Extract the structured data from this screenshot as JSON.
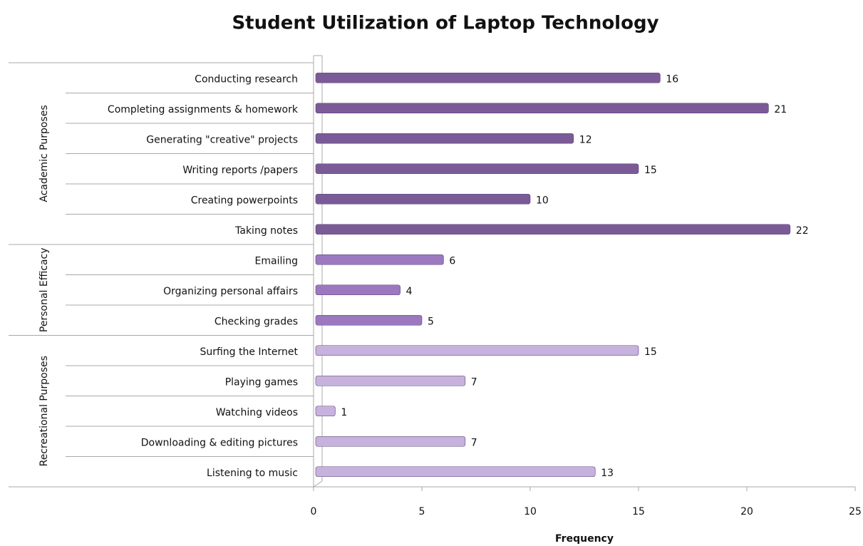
{
  "chart_data": {
    "type": "bar",
    "title": "Student Utilization of Laptop Technology",
    "x_label": "Frequency",
    "xlim": [
      0,
      25
    ],
    "xticks": [
      0,
      5,
      10,
      15,
      20,
      25
    ],
    "groups": [
      {
        "name": "Academic Purposes",
        "color": "#7b5b97",
        "categories": [
          "Conducting research",
          "Completing  assignments & homework",
          "Generating \"creative\" projects",
          "Writing reports /papers",
          "Creating powerpoints",
          "Taking notes"
        ],
        "values": [
          16,
          21,
          12,
          15,
          10,
          22
        ]
      },
      {
        "name": "Personal Efficacy",
        "color": "#9b78c0",
        "categories": [
          "Emailing",
          "Organizing personal affairs",
          "Checking grades"
        ],
        "values": [
          6,
          4,
          5
        ]
      },
      {
        "name": "Recreational Purposes",
        "color": "#c6b2dd",
        "categories": [
          "Surfing the Internet",
          "Playing games",
          "Watching videos",
          "Downloading & editing pictures",
          "Listening to music"
        ],
        "values": [
          15,
          7,
          1,
          7,
          13
        ]
      }
    ]
  }
}
